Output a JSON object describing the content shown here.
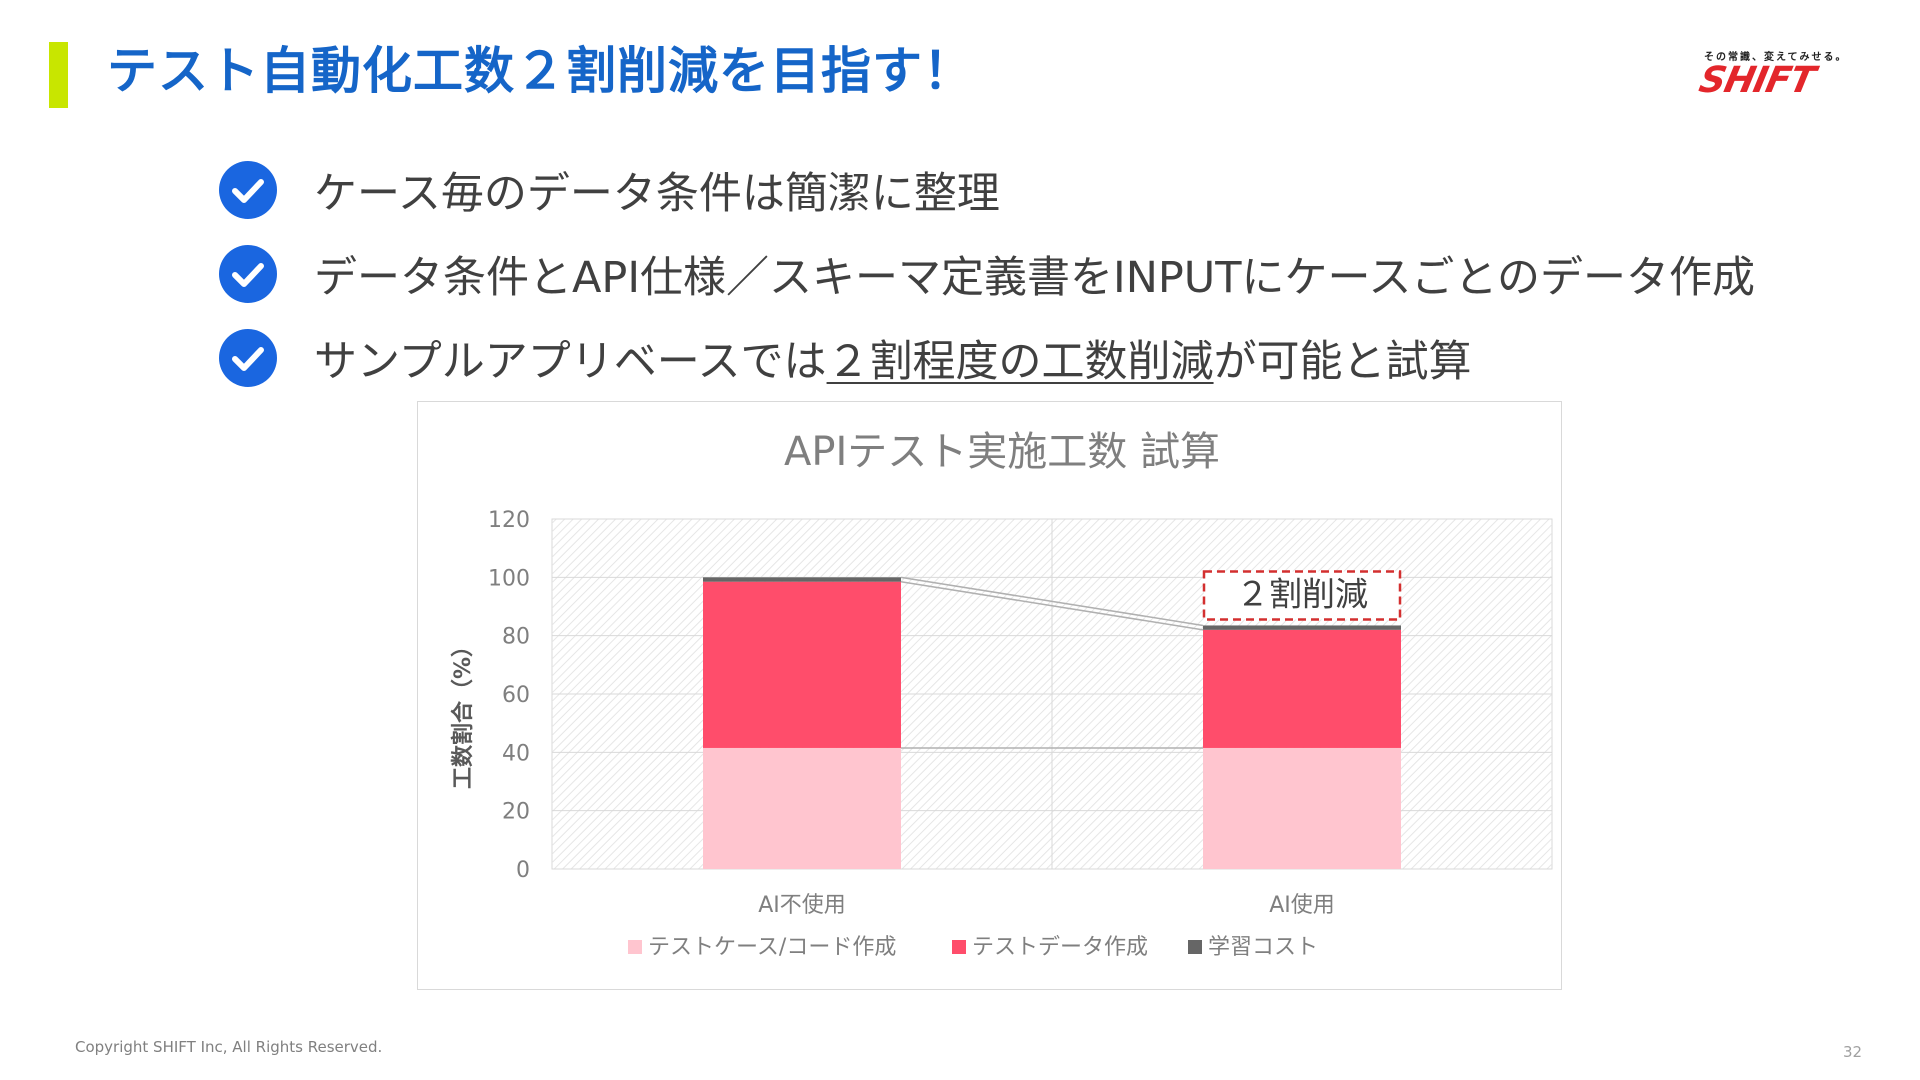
{
  "slide": {
    "title": "テスト自動化工数２割削減を目指す！",
    "page_number": "32",
    "copyright": "Copyright SHIFT Inc, All Rights Reserved."
  },
  "logo": {
    "tagline": "その常識、変えてみせる。",
    "wordmark": "SHIFT",
    "color": "#e3262b"
  },
  "bullets": [
    {
      "icon": "check-circle-icon",
      "text": "ケース毎のデータ条件は簡潔に整理"
    },
    {
      "icon": "check-circle-icon",
      "text": "データ条件とAPI仕様／スキーマ定義書をINPUTにケースごとのデータ作成"
    },
    {
      "icon": "check-circle-icon",
      "text_before": "サンプルアプリベースでは",
      "text_underlined": "２割程度の工数削減",
      "text_after": "が可能と試算"
    }
  ],
  "colors": {
    "title": "#1565c8",
    "accent_bar": "#c8e600",
    "check_icon": "#1a66e0"
  },
  "chart_data": {
    "type": "bar",
    "stacked": true,
    "title": "APIテスト実施工数 試算",
    "ylabel": "工数割合（%）",
    "xlabel": "",
    "categories": [
      "AI不使用",
      "AI使用"
    ],
    "ylim": [
      0,
      120
    ],
    "yticks": [
      0,
      20,
      40,
      60,
      80,
      100,
      120
    ],
    "grid": true,
    "legend_position": "bottom",
    "series": [
      {
        "name": "テストケース/コード作成",
        "values": [
          41.5,
          41.5
        ],
        "color": "#ffc5cf"
      },
      {
        "name": "テストデータ作成",
        "values": [
          57,
          40.5
        ],
        "color": "#ff4d6b"
      },
      {
        "name": "学習コスト",
        "values": [
          1.5,
          1.5
        ],
        "color": "#666666"
      }
    ],
    "annotation": {
      "text": "２割削減",
      "category": "AI使用"
    }
  }
}
